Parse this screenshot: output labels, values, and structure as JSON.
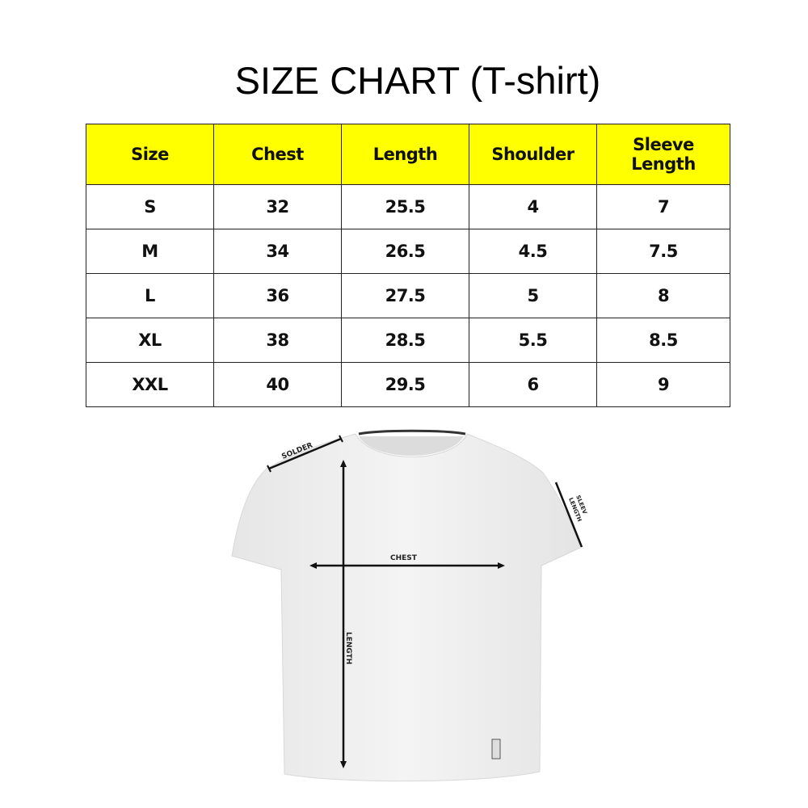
{
  "title": "SIZE CHART (T-shirt)",
  "table": {
    "headers": [
      "Size",
      "Chest",
      "Length",
      "Shoulder",
      "Sleeve Length"
    ],
    "rows": [
      [
        "S",
        "32",
        "25.5",
        "4",
        "7"
      ],
      [
        "M",
        "34",
        "26.5",
        "4.5",
        "7.5"
      ],
      [
        "L",
        "36",
        "27.5",
        "5",
        "8"
      ],
      [
        "XL",
        "38",
        "28.5",
        "5.5",
        "8.5"
      ],
      [
        "XXL",
        "40",
        "29.5",
        "6",
        "9"
      ]
    ]
  },
  "diagram": {
    "labels": {
      "shoulder": "SOLDER",
      "chest": "CHEST",
      "length": "LENGTH",
      "sleeve_1": "SLEEV",
      "sleeve_2": "LENGTH"
    }
  },
  "colors": {
    "header_bg": "#ffff00"
  }
}
